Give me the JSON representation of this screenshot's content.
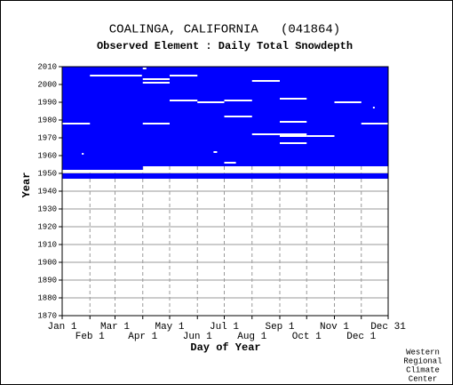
{
  "chart_data": {
    "type": "availability",
    "title": "COALINGA, CALIFORNIA   (041864)",
    "subtitle": "Observed Element : Daily Total Snowdepth",
    "xlabel": "Day of Year",
    "ylabel": "Year",
    "credit": [
      "Western",
      "Regional",
      "Climate",
      "Center"
    ],
    "color": "#0000ff",
    "grid": true,
    "xlim": [
      1,
      365
    ],
    "ylim": [
      1870,
      2010
    ],
    "xticks": [
      {
        "value": 1,
        "label": "Jan 1"
      },
      {
        "value": 32,
        "label": "Feb 1"
      },
      {
        "value": 60,
        "label": "Mar 1"
      },
      {
        "value": 91,
        "label": "Apr 1"
      },
      {
        "value": 121,
        "label": "May 1"
      },
      {
        "value": 152,
        "label": "Jun 1"
      },
      {
        "value": 182,
        "label": "Jul 1"
      },
      {
        "value": 213,
        "label": "Aug 1"
      },
      {
        "value": 244,
        "label": "Sep 1"
      },
      {
        "value": 274,
        "label": "Oct 1"
      },
      {
        "value": 305,
        "label": "Nov 1"
      },
      {
        "value": 335,
        "label": "Dec 1"
      },
      {
        "value": 365,
        "label": "Dec 31"
      }
    ],
    "yticks": [
      1870,
      1880,
      1890,
      1900,
      1910,
      1920,
      1930,
      1940,
      1950,
      1960,
      1970,
      1980,
      1990,
      2000,
      2010
    ],
    "coverage": [
      [
        1,
        365,
        1954,
        2010
      ],
      [
        1,
        91,
        1952,
        1954
      ],
      [
        1,
        365,
        1947,
        1950
      ]
    ],
    "missing": [
      [
        1,
        32,
        1978
      ],
      [
        32,
        90,
        2005
      ],
      [
        91,
        121,
        2003
      ],
      [
        91,
        121,
        2001
      ],
      [
        121,
        152,
        2005
      ],
      [
        121,
        152,
        1991
      ],
      [
        152,
        182,
        1990
      ],
      [
        182,
        213,
        1991
      ],
      [
        182,
        213,
        1982
      ],
      [
        213,
        244,
        2002
      ],
      [
        213,
        244,
        1972
      ],
      [
        244,
        274,
        1992
      ],
      [
        244,
        274,
        1979
      ],
      [
        244,
        274,
        1972
      ],
      [
        244,
        274,
        1971
      ],
      [
        244,
        274,
        1967
      ],
      [
        274,
        305,
        1971
      ],
      [
        305,
        335,
        1990
      ],
      [
        335,
        365,
        1978
      ],
      [
        91,
        121,
        1978
      ],
      [
        182,
        195,
        1956
      ],
      [
        170,
        174,
        1962
      ],
      [
        23,
        25,
        1961
      ],
      [
        348,
        350,
        1987
      ],
      [
        91,
        95,
        2009
      ]
    ]
  }
}
